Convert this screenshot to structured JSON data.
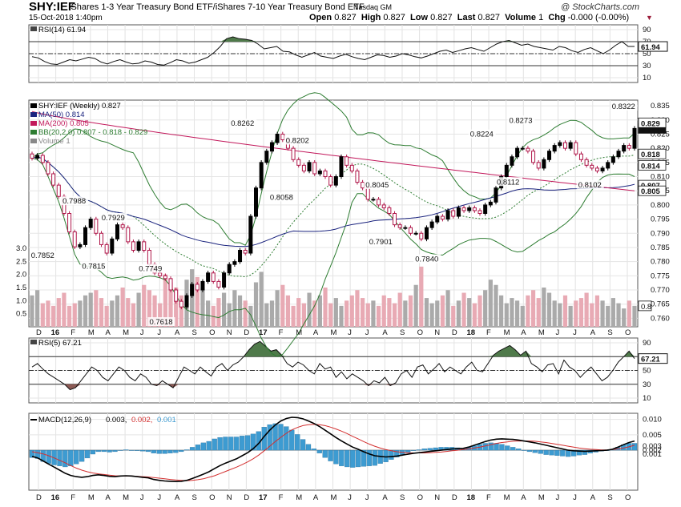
{
  "header": {
    "ticker": "SHY:IEF",
    "name": "iShares 1-3 Year Treasury Bond ETF/iShares 7-10 Year Treasury Bond ETF",
    "exchange": "Nasdaq GM",
    "brand": "@ StockCharts.com",
    "datetime": "15-Oct-2018 1:40pm",
    "open_label": "Open",
    "open": "0.827",
    "high_label": "High",
    "high": "0.827",
    "low_label": "Low",
    "low": "0.827",
    "last_label": "Last",
    "last": "0.827",
    "volume_label": "Volume",
    "volume": "1",
    "chg_label": "Chg",
    "chg": "-0.000 (-0.00%)",
    "chg_icon": "down-triangle-icon"
  },
  "colors": {
    "candle_up": "#000000",
    "candle_down": "#b0174a",
    "ma50": "#1a237e",
    "ma200": "#c2185b",
    "bb": "#2e7d32",
    "rsi_over": "#4f7a4a",
    "rsi_under": "#8c5a55",
    "macd_line": "#000000",
    "signal_line": "#d32f2f",
    "hist": "#3d9bd1",
    "vol_up": "#aaaaaa",
    "vol_down": "#e8aab4"
  },
  "chart_data": [
    {
      "type": "line",
      "title": "RSI(14) 61.94",
      "indicator": "RSI(14)",
      "last": "61.94",
      "ylim": [
        10,
        90
      ],
      "y_ticks": [
        "90",
        "70",
        "50",
        "30",
        "10"
      ],
      "levels": [
        70,
        50,
        30
      ],
      "values": [
        45,
        43,
        37,
        33,
        32,
        36,
        40,
        38,
        41,
        44,
        42,
        36,
        33,
        37,
        40,
        36,
        33,
        34,
        38,
        36,
        32,
        31,
        35,
        40,
        38,
        34,
        36,
        40,
        44,
        52,
        62,
        75,
        78,
        75,
        74,
        72,
        66,
        58,
        60,
        62,
        54,
        53,
        48,
        44,
        48,
        52,
        46,
        44,
        42,
        46,
        49,
        45,
        42,
        40,
        44,
        48,
        47,
        44,
        46,
        50,
        48,
        45,
        43,
        46,
        50,
        54,
        56,
        52,
        55,
        58,
        60,
        57,
        54,
        60,
        66,
        70,
        72,
        68,
        64,
        66,
        62,
        60,
        58,
        56,
        62,
        60,
        55,
        52,
        57,
        60,
        55,
        50,
        56,
        64,
        70,
        62,
        61.94
      ]
    },
    {
      "type": "candlestick",
      "title": "SHY:IEF (Weekly) 0.827",
      "ylim": [
        0.757,
        0.837
      ],
      "y_ticks": [
        "0.835",
        "0.830",
        "0.825",
        "0.820",
        "0.815",
        "0.810",
        "0.805",
        "0.800",
        "0.795",
        "0.790",
        "0.785",
        "0.780",
        "0.775",
        "0.770",
        "0.765",
        "0.760"
      ],
      "x_labels": [
        "D",
        "16",
        "F",
        "M",
        "A",
        "M",
        "J",
        "J",
        "A",
        "S",
        "O",
        "N",
        "D",
        "17",
        "F",
        "M",
        "A",
        "M",
        "J",
        "J",
        "A",
        "S",
        "O",
        "N",
        "D",
        "18",
        "F",
        "M",
        "A",
        "M",
        "J",
        "J",
        "A",
        "S",
        "O"
      ],
      "legend": [
        "SHY:IEF (Weekly) 0.827",
        "MA(50) 0.814",
        "MA(200) 0.805",
        "BB(20,2.0) 0.807 - 0.818 - 0.829",
        "Volume 1"
      ],
      "price_labels": {
        "last": "0.827",
        "bb_upper": "0.829",
        "bb_mid": "0.818",
        "ma50": "0.814",
        "bb_lower": "0.807",
        "ma200": "0.805",
        "volume_scale": [
          "3.0",
          "2.5",
          "2.0",
          "1.5",
          "1.0",
          "0.5"
        ],
        "volume_last": "0.8"
      },
      "annotations": [
        {
          "text": "0.7852",
          "x": 0.62,
          "y": 0.7852,
          "pos": "below"
        },
        {
          "text": "0.7988",
          "x": 2.4,
          "y": 0.7988,
          "pos": "above"
        },
        {
          "text": "0.7815",
          "x": 3.5,
          "y": 0.7815,
          "pos": "below"
        },
        {
          "text": "0.7929",
          "x": 4.6,
          "y": 0.7929,
          "pos": "above"
        },
        {
          "text": "0.7749",
          "x": 6.7,
          "y": 0.7749,
          "pos": "above"
        },
        {
          "text": "0.7618",
          "x": 7.3,
          "y": 0.7618,
          "pos": "below"
        },
        {
          "text": "0.8262",
          "x": 11.9,
          "y": 0.8262,
          "pos": "above"
        },
        {
          "text": "0.8058",
          "x": 14.1,
          "y": 0.8058,
          "pos": "below"
        },
        {
          "text": "0.8202",
          "x": 15.0,
          "y": 0.8202,
          "pos": "above"
        },
        {
          "text": "0.8045",
          "x": 19.5,
          "y": 0.8045,
          "pos": "above"
        },
        {
          "text": "0.7901",
          "x": 19.7,
          "y": 0.7901,
          "pos": "below"
        },
        {
          "text": "0.7840",
          "x": 22.3,
          "y": 0.784,
          "pos": "below"
        },
        {
          "text": "0.8224",
          "x": 25.4,
          "y": 0.8224,
          "pos": "above"
        },
        {
          "text": "0.8273",
          "x": 27.6,
          "y": 0.8273,
          "pos": "above"
        },
        {
          "text": "0.8112",
          "x": 26.9,
          "y": 0.8112,
          "pos": "below"
        },
        {
          "text": "0.8102",
          "x": 31.5,
          "y": 0.8102,
          "pos": "below"
        },
        {
          "text": "0.8322",
          "x": 33.4,
          "y": 0.8322,
          "pos": "above"
        }
      ],
      "close": [
        0.8165,
        0.8175,
        0.815,
        0.811,
        0.807,
        0.803,
        0.797,
        0.7905,
        0.7852,
        0.786,
        0.792,
        0.795,
        0.79,
        0.786,
        0.783,
        0.788,
        0.793,
        0.792,
        0.787,
        0.784,
        0.787,
        0.784,
        0.779,
        0.776,
        0.775,
        0.774,
        0.77,
        0.766,
        0.764,
        0.768,
        0.772,
        0.77,
        0.773,
        0.776,
        0.773,
        0.771,
        0.776,
        0.779,
        0.78,
        0.784,
        0.783,
        0.796,
        0.806,
        0.815,
        0.819,
        0.822,
        0.825,
        0.823,
        0.82,
        0.816,
        0.814,
        0.812,
        0.815,
        0.811,
        0.812,
        0.81,
        0.807,
        0.81,
        0.817,
        0.814,
        0.812,
        0.808,
        0.806,
        0.802,
        0.802,
        0.8,
        0.799,
        0.797,
        0.793,
        0.792,
        0.792,
        0.79,
        0.79,
        0.788,
        0.792,
        0.794,
        0.796,
        0.795,
        0.798,
        0.796,
        0.799,
        0.798,
        0.799,
        0.798,
        0.797,
        0.8,
        0.801,
        0.806,
        0.81,
        0.814,
        0.817,
        0.82,
        0.82,
        0.819,
        0.815,
        0.813,
        0.816,
        0.819,
        0.821,
        0.822,
        0.82,
        0.822,
        0.818,
        0.816,
        0.814,
        0.813,
        0.812,
        0.813,
        0.815,
        0.817,
        0.819,
        0.821,
        0.82,
        0.827
      ],
      "volume": [
        1.2,
        1.4,
        0.9,
        1.0,
        0.8,
        1.1,
        1.3,
        0.8,
        0.9,
        1.0,
        1.2,
        1.3,
        1.4,
        1.1,
        0.8,
        1.0,
        1.2,
        1.5,
        1.1,
        0.9,
        1.3,
        1.6,
        1.4,
        1.2,
        0.9,
        2.0,
        1.7,
        1.5,
        1.2,
        1.8,
        2.2,
        1.9,
        1.5,
        1.0,
        0.8,
        1.1,
        1.3,
        0.9,
        1.4,
        1.2,
        1.0,
        0.8,
        1.7,
        2.1,
        0.9,
        1.0,
        1.4,
        1.6,
        1.2,
        0.8,
        1.1,
        0.9,
        1.3,
        1.0,
        1.2,
        1.5,
        0.9,
        1.1,
        0.8,
        1.0,
        1.2,
        1.4,
        1.1,
        0.9,
        1.0,
        0.8,
        1.2,
        1.1,
        0.9,
        1.3,
        1.0,
        1.2,
        1.6,
        2.3,
        1.1,
        0.9,
        1.0,
        1.2,
        1.4,
        0.8,
        1.0,
        1.3,
        1.1,
        0.9,
        1.2,
        1.4,
        1.8,
        1.6,
        1.2,
        0.9,
        1.1,
        1.0,
        0.8,
        1.2,
        1.4,
        1.1,
        1.5,
        1.3,
        1.0,
        0.9,
        1.2,
        0.8,
        1.0,
        1.1,
        1.3,
        0.9,
        1.2,
        1.0,
        0.8,
        1.1,
        0.9,
        0.7,
        1.0,
        0.8
      ]
    },
    {
      "type": "line",
      "title": "RSI(5) 67.21",
      "indicator": "RSI(5)",
      "last": "67.21",
      "ylim": [
        10,
        90
      ],
      "y_ticks": [
        "90",
        "70",
        "50",
        "30",
        "10"
      ],
      "levels": [
        70,
        50,
        30
      ],
      "values": [
        55,
        60,
        52,
        45,
        40,
        35,
        30,
        22,
        25,
        35,
        45,
        55,
        50,
        40,
        35,
        45,
        55,
        50,
        40,
        35,
        45,
        40,
        30,
        28,
        35,
        30,
        25,
        40,
        55,
        50,
        45,
        55,
        48,
        42,
        55,
        60,
        50,
        58,
        62,
        70,
        80,
        88,
        92,
        85,
        78,
        80,
        72,
        60,
        55,
        62,
        58,
        50,
        45,
        60,
        52,
        55,
        40,
        48,
        38,
        45,
        40,
        35,
        28,
        35,
        32,
        40,
        28,
        32,
        45,
        50,
        40,
        55,
        58,
        45,
        52,
        60,
        48,
        55,
        50,
        45,
        55,
        62,
        50,
        48,
        60,
        72,
        78,
        82,
        86,
        80,
        72,
        78,
        60,
        55,
        48,
        58,
        60,
        45,
        65,
        55,
        50,
        40,
        48,
        55,
        45,
        35,
        40,
        50,
        62,
        70,
        78,
        67.21
      ],
      "x_labels": [
        "D",
        "16",
        "F",
        "M",
        "A",
        "M",
        "J",
        "J",
        "A",
        "S",
        "O",
        "N",
        "D",
        "17",
        "F",
        "M",
        "A",
        "M",
        "J",
        "J",
        "A",
        "S",
        "O",
        "N",
        "D",
        "18",
        "F",
        "M",
        "A",
        "M",
        "J",
        "J",
        "A",
        "S",
        "O"
      ]
    },
    {
      "type": "line",
      "title": "MACD(12,26,9) 0.003, 0.002, 0.001",
      "indicator": "MACD(12,26,9)",
      "legend_values": [
        "0.003",
        "0.002",
        "0.001"
      ],
      "ylim": [
        -0.013,
        0.012
      ],
      "y_ticks": [
        "0.010",
        "0.005",
        "0.003",
        "0.002",
        "0.001"
      ],
      "macd": [
        -0.002,
        -0.0025,
        -0.0035,
        -0.0045,
        -0.0055,
        -0.0065,
        -0.0075,
        -0.0082,
        -0.0086,
        -0.0088,
        -0.0086,
        -0.0082,
        -0.008,
        -0.0082,
        -0.0085,
        -0.0086,
        -0.0084,
        -0.0083,
        -0.0084,
        -0.0086,
        -0.0088,
        -0.009,
        -0.0095,
        -0.0098,
        -0.01,
        -0.0101,
        -0.0102,
        -0.0101,
        -0.0098,
        -0.0092,
        -0.0085,
        -0.0078,
        -0.007,
        -0.006,
        -0.005,
        -0.0042,
        -0.0035,
        -0.0028,
        -0.0018,
        -0.0008,
        0.0005,
        0.0022,
        0.0045,
        0.0065,
        0.0082,
        0.0095,
        0.0103,
        0.0107,
        0.0106,
        0.0102,
        0.0095,
        0.0087,
        0.0077,
        0.0065,
        0.0053,
        0.0041,
        0.003,
        0.002,
        0.001,
        0.0003,
        -0.0005,
        -0.0012,
        -0.0018,
        -0.002,
        -0.0022,
        -0.0021,
        -0.0019,
        -0.0016,
        -0.0013,
        -0.001,
        -0.0008,
        -0.0006,
        -0.0004,
        -0.0002,
        0.0,
        0.0002,
        0.0004,
        0.0005,
        0.0006,
        0.001,
        0.0016,
        0.0022,
        0.0028,
        0.0033,
        0.0036,
        0.0037,
        0.0036,
        0.0035,
        0.0033,
        0.003,
        0.0027,
        0.0024,
        0.002,
        0.0016,
        0.0012,
        0.0008,
        0.0004,
        0.0,
        -0.0002,
        -0.0003,
        -0.0004,
        -0.0003,
        -0.0002,
        -0.0001,
        0.0,
        0.0003,
        0.001,
        0.0018,
        0.0025,
        0.003
      ],
      "signal": [
        -0.0005,
        -0.0008,
        -0.0012,
        -0.0018,
        -0.0025,
        -0.0033,
        -0.0041,
        -0.005,
        -0.0058,
        -0.0065,
        -0.007,
        -0.0074,
        -0.0077,
        -0.0079,
        -0.0081,
        -0.0083,
        -0.0084,
        -0.0084,
        -0.0084,
        -0.0085,
        -0.0086,
        -0.0087,
        -0.0089,
        -0.0091,
        -0.0093,
        -0.0095,
        -0.0097,
        -0.0098,
        -0.0099,
        -0.0098,
        -0.0096,
        -0.0093,
        -0.0088,
        -0.0083,
        -0.0076,
        -0.0069,
        -0.0062,
        -0.0055,
        -0.0047,
        -0.0038,
        -0.0028,
        -0.0016,
        -0.0002,
        0.0013,
        0.0028,
        0.0042,
        0.0055,
        0.0066,
        0.0074,
        0.008,
        0.0083,
        0.0084,
        0.0083,
        0.008,
        0.0075,
        0.0069,
        0.0062,
        0.0054,
        0.0045,
        0.0037,
        0.0028,
        0.002,
        0.0013,
        0.0007,
        0.0002,
        -0.0002,
        -0.0005,
        -0.0007,
        -0.0008,
        -0.0009,
        -0.0009,
        -0.0009,
        -0.0008,
        -0.0007,
        -0.0006,
        -0.0004,
        -0.0002,
        0.0,
        0.0002,
        0.0004,
        0.0007,
        0.001,
        0.0014,
        0.0018,
        0.0022,
        0.0025,
        0.0027,
        0.0029,
        0.003,
        0.003,
        0.003,
        0.0029,
        0.0027,
        0.0025,
        0.0022,
        0.0019,
        0.0016,
        0.0013,
        0.001,
        0.0007,
        0.0005,
        0.0003,
        0.0002,
        0.0001,
        0.0001,
        0.0002,
        0.0004,
        0.0007,
        0.0011,
        0.0016
      ],
      "x_labels": [
        "D",
        "16",
        "F",
        "M",
        "A",
        "M",
        "J",
        "J",
        "A",
        "S",
        "O",
        "N",
        "D",
        "17",
        "F",
        "M",
        "A",
        "M",
        "J",
        "J",
        "A",
        "S",
        "O",
        "N",
        "D",
        "18",
        "F",
        "M",
        "A",
        "M",
        "J",
        "J",
        "A",
        "S",
        "O"
      ]
    }
  ]
}
